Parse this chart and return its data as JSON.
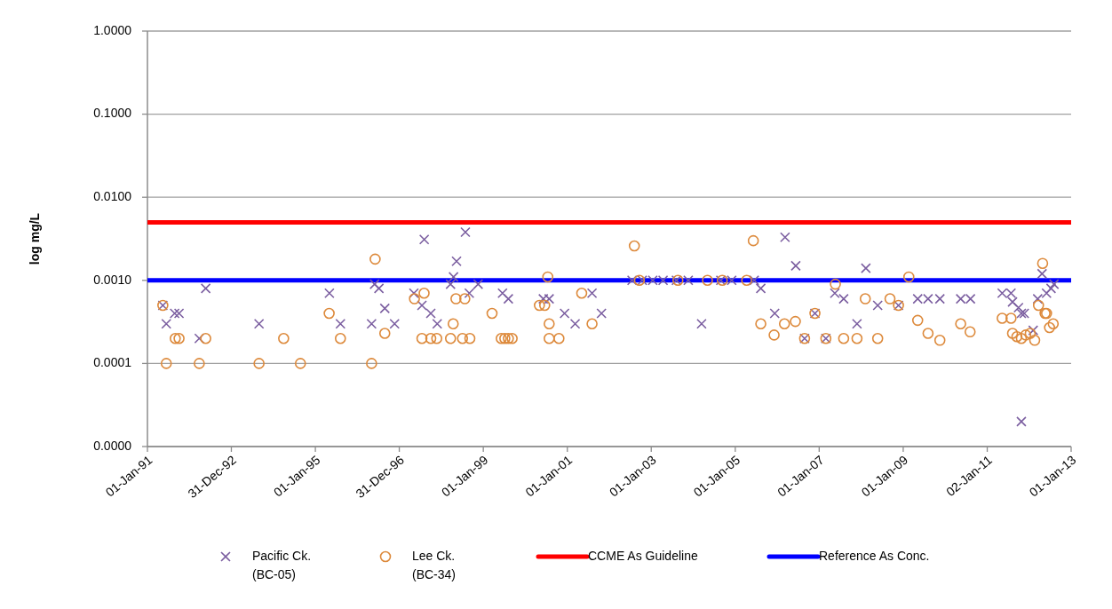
{
  "chart_data": {
    "type": "scatter",
    "ylabel": "log mg/L",
    "log": "y",
    "grid": "y",
    "legend": "bottom",
    "xlim": [
      "1991-01-01",
      "2013-01-01"
    ],
    "xticks": [
      {
        "value": "1991-01-01",
        "label": "01-Jan-91"
      },
      {
        "value": "1992-12-31",
        "label": "31-Dec-92"
      },
      {
        "value": "1995-01-01",
        "label": "01-Jan-95"
      },
      {
        "value": "1996-12-31",
        "label": "31-Dec-96"
      },
      {
        "value": "1999-01-01",
        "label": "01-Jan-99"
      },
      {
        "value": "2001-01-01",
        "label": "01-Jan-01"
      },
      {
        "value": "2003-01-01",
        "label": "01-Jan-03"
      },
      {
        "value": "2005-01-01",
        "label": "01-Jan-05"
      },
      {
        "value": "2007-01-01",
        "label": "01-Jan-07"
      },
      {
        "value": "2009-01-01",
        "label": "01-Jan-09"
      },
      {
        "value": "2011-01-02",
        "label": "02-Jan-11"
      },
      {
        "value": "2013-01-01",
        "label": "01-Jan-13"
      }
    ],
    "ylim": [
      1e-05,
      1
    ],
    "yticks": [
      {
        "value": 1e-05,
        "label": "0.0000"
      },
      {
        "value": 0.0001,
        "label": "0.0001"
      },
      {
        "value": 0.001,
        "label": "0.0010"
      },
      {
        "value": 0.01,
        "label": "0.0100"
      },
      {
        "value": 0.1,
        "label": "0.1000"
      },
      {
        "value": 1,
        "label": "1.0000"
      }
    ],
    "series": [
      {
        "name": "Pacific Ck.\n(BC-05)",
        "color": "#7b5ea0",
        "marker": "cross",
        "x": [
          "1991-05-15",
          "1991-06-14",
          "1991-08-26",
          "1991-10-03",
          "1992-03-27",
          "1992-05-22",
          "1993-08-29",
          "1995-05-03",
          "1995-08-07",
          "1996-05-04",
          "1996-05-30",
          "1996-07-07",
          "1996-08-27",
          "1996-11-20",
          "1997-05-07",
          "1997-07-16",
          "1997-08-05",
          "1997-10-01",
          "1997-11-26",
          "1998-03-22",
          "1998-04-17",
          "1998-05-13",
          "1998-07-29",
          "1998-09-01",
          "1998-11-17",
          "1999-06-17",
          "1999-08-07",
          "2000-06-06",
          "2000-07-27",
          "2000-12-08",
          "2001-03-10",
          "2001-08-04",
          "2001-10-25",
          "2002-07-18",
          "2002-10-15",
          "2003-01-14",
          "2003-04-14",
          "2003-08-08",
          "2003-11-19",
          "2004-03-14",
          "2004-08-28",
          "2004-12-01",
          "2005-06-15",
          "2005-08-11",
          "2005-12-10",
          "2006-03-10",
          "2006-06-11",
          "2006-08-27",
          "2006-11-25",
          "2007-02-28",
          "2007-05-17",
          "2007-08-02",
          "2007-11-26",
          "2008-02-11",
          "2008-05-24",
          "2008-11-21",
          "2009-05-07",
          "2009-08-05",
          "2009-11-16",
          "2010-05-16",
          "2010-08-09",
          "2011-05-12",
          "2011-07-28",
          "2011-08-10",
          "2011-10-01",
          "2011-10-26",
          "2011-11-20",
          "2011-10-26",
          "2012-02-06",
          "2012-03-16",
          "2012-04-23",
          "2012-06-01",
          "2012-07-10",
          "2012-08-05"
        ],
        "values": [
          0.0005,
          0.0003,
          0.0004,
          0.0004,
          0.0002,
          0.0008,
          0.0003,
          0.0007,
          0.0003,
          0.0003,
          0.0009,
          0.0008,
          0.00046,
          0.0003,
          0.0007,
          0.0005,
          0.0031,
          0.0004,
          0.0003,
          0.0009,
          0.0011,
          0.0017,
          0.0038,
          0.0007,
          0.0009,
          0.0007,
          0.0006,
          0.0006,
          0.0006,
          0.0004,
          0.0003,
          0.0007,
          0.0004,
          0.001,
          0.001,
          0.001,
          0.001,
          0.001,
          0.001,
          0.0003,
          0.001,
          0.001,
          0.001,
          0.0008,
          0.0004,
          0.0033,
          0.0015,
          0.0002,
          0.0004,
          0.0002,
          0.0007,
          0.0006,
          0.0003,
          0.0014,
          0.0005,
          0.0005,
          0.0006,
          0.0006,
          0.0006,
          0.0006,
          0.0006,
          0.0007,
          0.0007,
          0.00055,
          0.00047,
          0.0004,
          0.0004,
          2e-05,
          0.00025,
          0.0006,
          0.0012,
          0.0007,
          0.0008,
          0.0009
        ]
      },
      {
        "name": "Lee Ck.\n(BC-34)",
        "color": "#dd8a3c",
        "marker": "circle",
        "x": [
          "1991-05-15",
          "1991-06-14",
          "1991-08-31",
          "1991-10-03",
          "1992-03-27",
          "1992-05-22",
          "1993-08-29",
          "1994-03-31",
          "1994-08-24",
          "1995-05-01",
          "1995-08-07",
          "1996-05-04",
          "1996-06-04",
          "1996-08-27",
          "1997-05-12",
          "1997-07-16",
          "1997-08-04",
          "1997-10-01",
          "1997-11-22",
          "1998-03-22",
          "1998-04-14",
          "1998-05-08",
          "1998-07-04",
          "1998-07-24",
          "1998-09-06",
          "1999-03-18",
          "1999-06-06",
          "1999-07-07",
          "1999-08-07",
          "1999-09-09",
          "2000-05-03",
          "2000-06-18",
          "2000-07-15",
          "2000-07-27",
          "2000-07-27",
          "2000-10-20",
          "2001-05-06",
          "2001-08-04",
          "2002-08-07",
          "2002-09-20",
          "2003-08-21",
          "2004-05-04",
          "2004-09-10",
          "2005-04-10",
          "2005-06-07",
          "2005-08-11",
          "2005-12-05",
          "2006-03-05",
          "2006-06-08",
          "2006-08-27",
          "2006-11-25",
          "2007-02-28",
          "2007-05-22",
          "2007-08-02",
          "2007-11-26",
          "2008-02-06",
          "2008-05-24",
          "2008-09-08",
          "2008-11-21",
          "2009-02-19",
          "2009-05-07",
          "2009-08-05",
          "2009-11-16",
          "2010-05-16",
          "2010-08-06",
          "2011-05-12",
          "2011-07-28",
          "2011-08-10",
          "2011-09-17",
          "2011-10-26",
          "2011-12-03",
          "2012-01-11",
          "2012-02-19",
          "2012-03-23",
          "2012-04-28",
          "2012-05-19",
          "2012-06-01",
          "2012-06-27",
          "2012-07-29"
        ],
        "values": [
          0.0005,
          0.0001,
          0.0002,
          0.0002,
          0.0001,
          0.0002,
          0.0001,
          0.0002,
          0.0001,
          0.0004,
          0.0002,
          0.0001,
          0.0018,
          0.00023,
          0.0006,
          0.0002,
          0.0007,
          0.0002,
          0.0002,
          0.0002,
          0.0003,
          0.0006,
          0.0002,
          0.0006,
          0.0002,
          0.0004,
          0.0002,
          0.0002,
          0.0002,
          0.0002,
          0.0005,
          0.0005,
          0.0011,
          0.0003,
          0.0002,
          0.0002,
          0.0007,
          0.0003,
          0.0026,
          0.001,
          0.001,
          0.001,
          0.001,
          0.001,
          0.003,
          0.0003,
          0.00022,
          0.0003,
          0.00032,
          0.0002,
          0.0004,
          0.0002,
          0.0009,
          0.0002,
          0.0002,
          0.0006,
          0.0002,
          0.0006,
          0.0005,
          0.0011,
          0.00033,
          0.00023,
          0.00019,
          0.0003,
          0.00024,
          0.00035,
          0.00035,
          0.00023,
          0.00021,
          0.0002,
          0.00022,
          0.00023,
          0.00019,
          0.0005,
          0.0016,
          0.0004,
          0.0004,
          0.00027,
          0.0003
        ]
      }
    ],
    "ref_lines": [
      {
        "axis": "y",
        "value": 0.005,
        "label": "CCME As Guideline",
        "color": "#ff0000"
      },
      {
        "axis": "y",
        "value": 0.001,
        "label": "Reference As Conc.",
        "color": "#0000ff"
      }
    ]
  }
}
